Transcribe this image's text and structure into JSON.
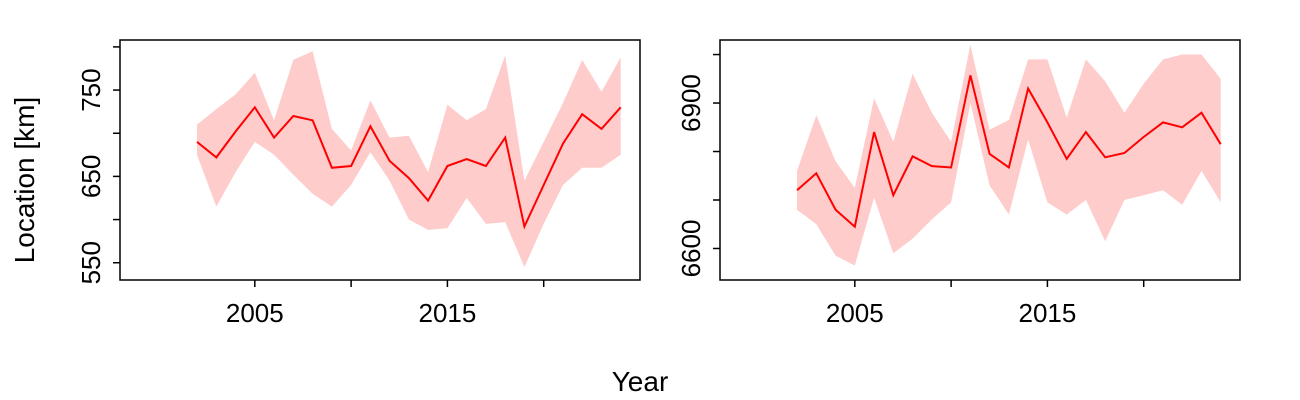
{
  "figure": {
    "xlabel": "Year",
    "ylabel": "Location [km]"
  },
  "colors": {
    "line": "#ff0000",
    "band": "#ffcccc",
    "frame": "#000000"
  },
  "chart_data": [
    {
      "type": "line",
      "x": [
        2002,
        2003,
        2004,
        2005,
        2006,
        2007,
        2008,
        2009,
        2010,
        2011,
        2012,
        2013,
        2014,
        2015,
        2016,
        2017,
        2018,
        2019,
        2020,
        2021,
        2022,
        2023,
        2024
      ],
      "values": [
        690,
        672,
        702,
        730,
        695,
        720,
        715,
        660,
        662,
        708,
        668,
        648,
        622,
        662,
        670,
        662,
        695,
        592,
        640,
        688,
        722,
        705,
        730
      ],
      "lower": [
        675,
        615,
        655,
        690,
        675,
        652,
        630,
        615,
        640,
        678,
        645,
        600,
        588,
        590,
        625,
        595,
        597,
        545,
        595,
        640,
        660,
        660,
        675
      ],
      "upper": [
        710,
        728,
        745,
        770,
        715,
        785,
        795,
        705,
        680,
        738,
        695,
        697,
        655,
        733,
        715,
        728,
        790,
        645,
        690,
        735,
        785,
        748,
        788
      ],
      "xlim": [
        1998,
        2025
      ],
      "ylim": [
        530,
        808
      ],
      "xticks": [
        2005,
        2010,
        2015,
        2020
      ],
      "xtick_labels": [
        "2005",
        "2015"
      ],
      "yticks": [
        550,
        600,
        650,
        700,
        750,
        800
      ],
      "ytick_labels": [
        "550",
        "650",
        "750"
      ],
      "grid": false
    },
    {
      "type": "line",
      "x": [
        2002,
        2003,
        2004,
        2005,
        2006,
        2007,
        2008,
        2009,
        2010,
        2011,
        2012,
        2013,
        2014,
        2015,
        2016,
        2017,
        2018,
        2019,
        2020,
        2021,
        2022,
        2023,
        2024
      ],
      "values": [
        6720,
        6755,
        6680,
        6645,
        6840,
        6710,
        6790,
        6770,
        6767,
        6957,
        6795,
        6767,
        6930,
        6860,
        6785,
        6840,
        6788,
        6797,
        6830,
        6860,
        6850,
        6880,
        6815
      ],
      "lower": [
        6680,
        6650,
        6585,
        6565,
        6705,
        6590,
        6620,
        6660,
        6695,
        6900,
        6730,
        6670,
        6825,
        6695,
        6670,
        6700,
        6615,
        6700,
        6710,
        6720,
        6690,
        6760,
        6695
      ],
      "upper": [
        6760,
        6875,
        6780,
        6725,
        6910,
        6820,
        6960,
        6880,
        6820,
        7020,
        6845,
        6865,
        6990,
        6990,
        6870,
        6990,
        6945,
        6880,
        6940,
        6990,
        7000,
        7000,
        6950
      ],
      "xlim": [
        1998,
        2025
      ],
      "ylim": [
        6535,
        7030
      ],
      "xticks": [
        2005,
        2010,
        2015,
        2020
      ],
      "xtick_labels": [
        "2005",
        "2015"
      ],
      "yticks": [
        6600,
        6700,
        6800,
        6900,
        7000
      ],
      "ytick_labels": [
        "6600",
        "6900"
      ],
      "grid": false
    }
  ]
}
